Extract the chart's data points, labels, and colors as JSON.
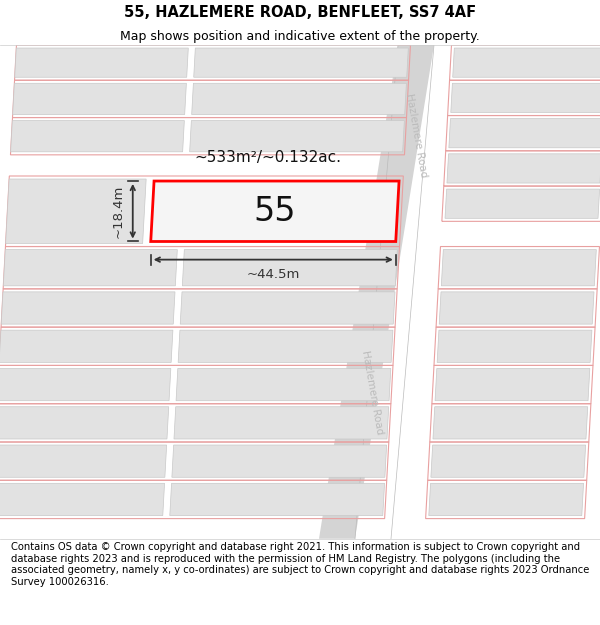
{
  "title": "55, HAZLEMERE ROAD, BENFLEET, SS7 4AF",
  "subtitle": "Map shows position and indicative extent of the property.",
  "footer": "Contains OS data © Crown copyright and database right 2021. This information is subject to Crown copyright and database rights 2023 and is reproduced with the permission of HM Land Registry. The polygons (including the associated geometry, namely x, y co-ordinates) are subject to Crown copyright and database rights 2023 Ordnance Survey 100026316.",
  "area_label": "~533m²/~0.132ac.",
  "width_label": "~44.5m",
  "height_label": "~18.4m",
  "number_label": "55",
  "map_bg": "#ffffff",
  "road_fill": "#d4d4d4",
  "building_fill": "#e2e2e2",
  "building_edge": "#c8c8c8",
  "plot_edge": "#e8a0a0",
  "highlight_edge": "#ff0000",
  "highlight_fill": "#f5f5f5",
  "road_label_color": "#bbbbbb",
  "dim_color": "#333333",
  "title_fontsize": 10.5,
  "subtitle_fontsize": 9,
  "footer_fontsize": 7.2,
  "area_fontsize": 11,
  "number_fontsize": 24,
  "dim_fontsize": 9.5
}
